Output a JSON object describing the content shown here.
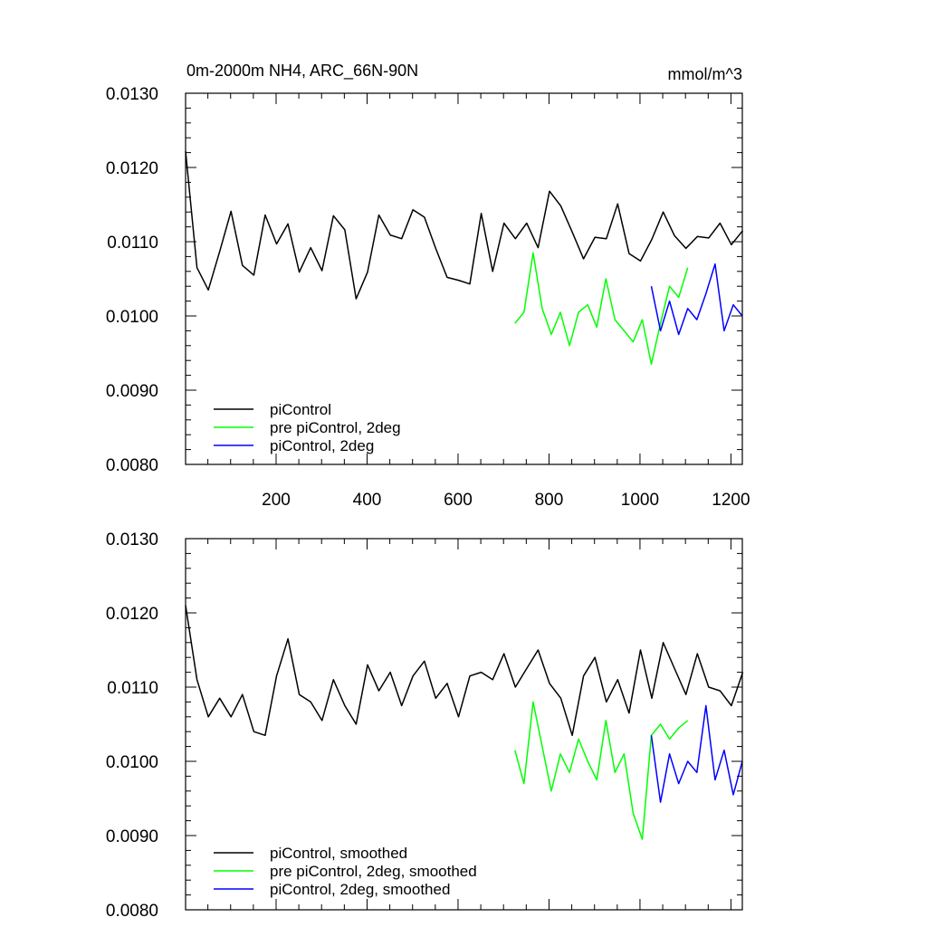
{
  "chart_data": [
    {
      "type": "line",
      "title": "0m-2000m NH4, ARC_66N-90N",
      "units": "mmol/m^3",
      "xlim": [
        1,
        1225
      ],
      "ylim": [
        0.008,
        0.013
      ],
      "x_ticks": [
        200,
        400,
        600,
        800,
        1000,
        1200
      ],
      "x_tick_labels": [
        "200",
        "400",
        "600",
        "800",
        "1000",
        "1200"
      ],
      "y_ticks": [
        0.008,
        0.009,
        0.01,
        0.011,
        0.012,
        0.013
      ],
      "y_tick_labels": [
        "0.0080",
        "0.0090",
        "0.0100",
        "0.0110",
        "0.0120",
        "0.0130"
      ],
      "legend_position": "bottom-left",
      "series": [
        {
          "name": "piControl",
          "color": "#000000",
          "x_start": 1,
          "x_step": 25,
          "values": [
            0.01222,
            0.01065,
            0.01035,
            0.01087,
            0.01141,
            0.01068,
            0.01055,
            0.01136,
            0.01097,
            0.01124,
            0.01059,
            0.01092,
            0.01061,
            0.01135,
            0.01116,
            0.01023,
            0.01059,
            0.01136,
            0.01109,
            0.01104,
            0.01143,
            0.01133,
            0.01091,
            0.01052,
            0.01048,
            0.01043,
            0.01138,
            0.0106,
            0.01125,
            0.01104,
            0.01125,
            0.01092,
            0.01168,
            0.01148,
            0.01113,
            0.01077,
            0.01106,
            0.01104,
            0.01151,
            0.01084,
            0.01074,
            0.01103,
            0.0114,
            0.01108,
            0.01091,
            0.01107,
            0.01105,
            0.01125,
            0.01096,
            0.01115
          ]
        },
        {
          "name": "pre piControl, 2deg",
          "color": "#00ff00",
          "x_start": 725,
          "x_step": 20,
          "values": [
            0.0099,
            0.01005,
            0.01085,
            0.0101,
            0.00975,
            0.01005,
            0.0096,
            0.01005,
            0.01015,
            0.00985,
            0.0105,
            0.00995,
            0.0098,
            0.00965,
            0.00995,
            0.00935,
            0.0099,
            0.0104,
            0.01025,
            0.01065
          ]
        },
        {
          "name": "piControl, 2deg",
          "color": "#0000ff",
          "x_start": 1025,
          "x_step": 20,
          "values": [
            0.0104,
            0.0098,
            0.0102,
            0.00975,
            0.0101,
            0.00995,
            0.0103,
            0.0107,
            0.0098,
            0.01015,
            0.01
          ]
        }
      ]
    },
    {
      "type": "line",
      "title": "",
      "xlim": [
        1,
        1225
      ],
      "ylim": [
        0.008,
        0.013
      ],
      "x_ticks": [
        200,
        400,
        600,
        800,
        1000,
        1200
      ],
      "y_ticks": [
        0.008,
        0.009,
        0.01,
        0.011,
        0.012,
        0.013
      ],
      "y_tick_labels": [
        "0.0080",
        "0.0090",
        "0.0100",
        "0.0110",
        "0.0120",
        "0.0130"
      ],
      "legend_position": "bottom-left",
      "series": [
        {
          "name": "piControl, smoothed",
          "color": "#000000",
          "x_start": 1,
          "x_step": 25,
          "values": [
            0.0121,
            0.0111,
            0.0106,
            0.01085,
            0.0106,
            0.0109,
            0.0104,
            0.01035,
            0.01115,
            0.01165,
            0.0109,
            0.0108,
            0.01055,
            0.0111,
            0.01075,
            0.0105,
            0.0113,
            0.01095,
            0.0112,
            0.01075,
            0.01115,
            0.01135,
            0.01085,
            0.01105,
            0.0106,
            0.01115,
            0.0112,
            0.0111,
            0.01145,
            0.011,
            0.01125,
            0.0115,
            0.01105,
            0.01085,
            0.01035,
            0.01115,
            0.0114,
            0.0108,
            0.0111,
            0.01065,
            0.0115,
            0.01085,
            0.0116,
            0.01125,
            0.0109,
            0.01145,
            0.011,
            0.01095,
            0.01075,
            0.0112
          ]
        },
        {
          "name": "pre piControl, 2deg, smoothed",
          "color": "#00ff00",
          "x_start": 725,
          "x_step": 20,
          "values": [
            0.01015,
            0.0097,
            0.0108,
            0.0102,
            0.0096,
            0.0101,
            0.00985,
            0.0103,
            0.01,
            0.00975,
            0.01055,
            0.00985,
            0.0101,
            0.0093,
            0.00895,
            0.01035,
            0.0105,
            0.0103,
            0.01045,
            0.01055
          ]
        },
        {
          "name": "piControl, 2deg, smoothed",
          "color": "#0000ff",
          "x_start": 1025,
          "x_step": 20,
          "values": [
            0.01035,
            0.00945,
            0.0101,
            0.0097,
            0.01,
            0.00985,
            0.01075,
            0.00975,
            0.01015,
            0.00955,
            0.01
          ]
        }
      ]
    }
  ]
}
